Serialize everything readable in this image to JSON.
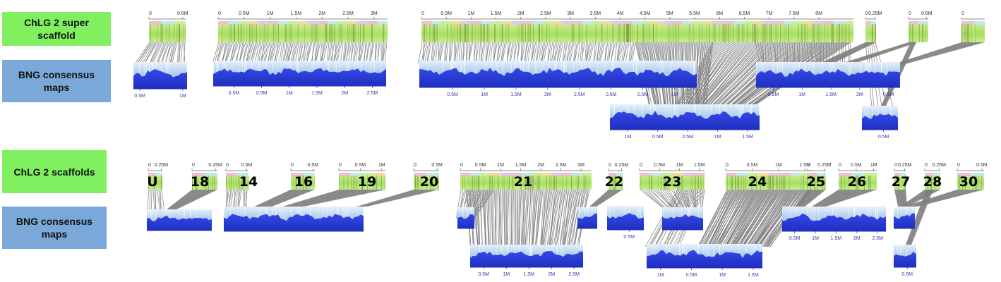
{
  "labels": {
    "super_scaffold": "ChLG 2 super scaffold",
    "bng_maps_1": "BNG consensus maps",
    "scaffolds": "ChLG 2 scaffolds",
    "bng_maps_2": "BNG consensus maps"
  },
  "colors": {
    "label_green": "#80f060",
    "label_blue": "#7aa8d8",
    "scaffold_green": "#a8e060",
    "map_blue": "#2a3ee0",
    "map_fade": "#cfe4f7",
    "links": "#7a7a7a"
  },
  "top": {
    "scaffold_ticks": [
      [
        "0",
        "0.5M"
      ],
      [
        "0",
        "0.5M",
        "1M",
        "1.5M",
        "2M",
        "2.5M",
        "3M"
      ],
      [
        "0",
        "0.5M",
        "1M",
        "1.5M",
        "2M",
        "2.5M",
        "3M",
        "3.5M",
        "4M",
        "4.5M",
        "5M",
        "5.5M",
        "6M",
        "6.5M",
        "7M",
        "7.5M",
        "8M"
      ],
      [
        "0",
        "0.25M"
      ],
      [
        "0",
        "0.5M"
      ],
      [
        "0"
      ]
    ],
    "map_ticks": [
      [
        "0.5M",
        "1M"
      ],
      [
        "0.5M",
        "0.5M",
        "1M",
        "1.5M",
        "2M",
        "2.5M"
      ],
      [
        "0.5M",
        "1M",
        "1.5M",
        "2M",
        "2.5M",
        "0.5M",
        "0.5M",
        "1M"
      ],
      [
        "0.5M",
        "1M",
        "1.5M",
        "2M",
        "0.5M"
      ],
      [
        "1M",
        "0.5M",
        "0.5M",
        "1M",
        "1.5M"
      ],
      [
        "0.5M"
      ]
    ]
  },
  "bottom": {
    "scaffold_names": [
      "U",
      "18",
      "14",
      "16",
      "19",
      "20",
      "21",
      "22",
      "23",
      "24",
      "25",
      "26",
      "27",
      "28",
      "30"
    ],
    "scaffold_ticks": [
      [
        "0",
        "0.25M"
      ],
      [
        "0",
        "0.25M"
      ],
      [
        "0",
        "0.5M"
      ],
      [
        "0",
        "0.5M"
      ],
      [
        "0",
        "0.5M",
        "1M"
      ],
      [
        "0",
        "0.5M"
      ],
      [
        "0",
        "0.5M",
        "1M",
        "1.5M",
        "2M",
        "2.5M",
        "3M"
      ],
      [
        "0",
        "0.25M"
      ],
      [
        "0",
        "0.5M",
        "1M",
        "1.5M"
      ],
      [
        "0",
        "0.5M",
        "1M",
        "1.5M"
      ],
      [
        "0",
        "0.25M"
      ],
      [
        "0",
        "0.5M",
        "1M"
      ],
      [
        "0",
        "0.25M"
      ],
      [
        "0",
        "0.25M"
      ],
      [
        "0",
        "0.5M"
      ]
    ],
    "map_ticks": [
      [
        "0.5M",
        "1M",
        "1.5M",
        "2M",
        "2.5M"
      ],
      [
        "1M",
        "0.5M",
        "1M",
        "1.5M"
      ],
      [
        "0.5M",
        "1M",
        "1.5M",
        "2M",
        "2.5M"
      ],
      [
        "0.5M"
      ],
      [
        "0.5M"
      ],
      [
        "0.5M"
      ]
    ]
  }
}
